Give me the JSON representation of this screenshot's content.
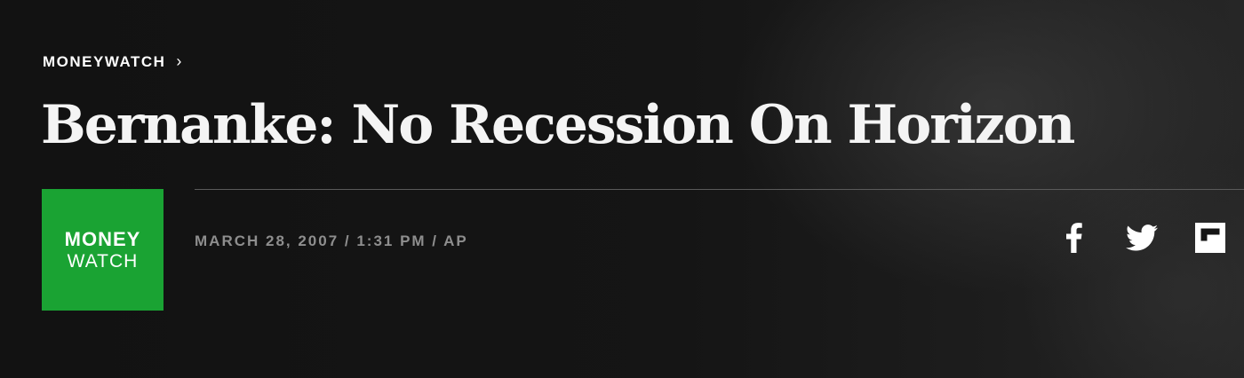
{
  "breadcrumb": {
    "section": "MONEYWATCH",
    "chevron": "›"
  },
  "article": {
    "headline": "Bernanke: No Recession On Horizon",
    "byline": "MARCH 28, 2007 / 1:31 PM / AP"
  },
  "logo": {
    "line1": "MONEY",
    "line2": "WATCH",
    "color": "#1aa333"
  },
  "share": [
    {
      "icon": "facebook-icon"
    },
    {
      "icon": "twitter-icon"
    },
    {
      "icon": "flipboard-icon"
    }
  ],
  "colors": {
    "background": "#141414",
    "text": "#ffffff",
    "byline": "#8e8e8e",
    "accent": "#1aa333"
  }
}
